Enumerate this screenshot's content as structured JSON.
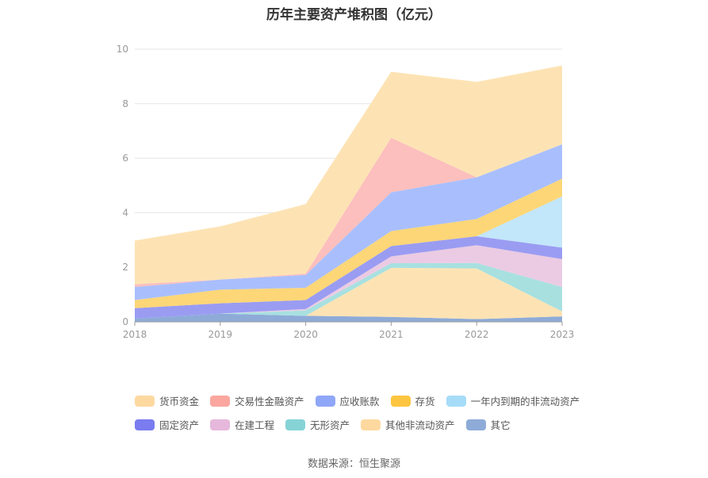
{
  "chart_data": {
    "type": "area",
    "title": "历年主要资产堆积图（亿元）",
    "categories": [
      "2018",
      "2019",
      "2020",
      "2021",
      "2022",
      "2023"
    ],
    "ylim": [
      0,
      10
    ],
    "yticks": [
      0,
      2,
      4,
      6,
      8,
      10
    ],
    "grid": true,
    "legend_position": "bottom",
    "series": [
      {
        "name": "其它",
        "color": "#8eabd8",
        "values": [
          0.12,
          0.3,
          0.22,
          0.18,
          0.1,
          0.2
        ]
      },
      {
        "name": "其他非流动资产",
        "color": "#fde3b4",
        "values": [
          0.0,
          0.0,
          0.0,
          1.8,
          1.86,
          0.18
        ]
      },
      {
        "name": "无形资产",
        "color": "#a8e0e0",
        "values": [
          0.0,
          0.0,
          0.2,
          0.17,
          0.2,
          0.9
        ]
      },
      {
        "name": "在建工程",
        "color": "#ebcbe3",
        "values": [
          0.0,
          0.0,
          0.05,
          0.25,
          0.65,
          1.02
        ]
      },
      {
        "name": "固定资产",
        "color": "#9a9cf2",
        "values": [
          0.38,
          0.38,
          0.33,
          0.38,
          0.33,
          0.42
        ]
      },
      {
        "name": "一年内到期的非流动资产",
        "color": "#c2e6fa",
        "values": [
          0.0,
          0.0,
          0.0,
          0.0,
          0.0,
          1.88
        ]
      },
      {
        "name": "存货",
        "color": "#fdd677",
        "values": [
          0.3,
          0.5,
          0.45,
          0.55,
          0.63,
          0.65
        ]
      },
      {
        "name": "应收账款",
        "color": "#a9bffd",
        "values": [
          0.48,
          0.37,
          0.47,
          1.42,
          1.53,
          1.26
        ]
      },
      {
        "name": "交易性金融资产",
        "color": "#fcbfbd",
        "values": [
          0.1,
          0.0,
          0.05,
          2.0,
          0.0,
          0.0
        ]
      },
      {
        "name": "货币资金",
        "color": "#fde3b4",
        "values": [
          1.6,
          1.95,
          2.55,
          2.42,
          3.5,
          2.89
        ]
      }
    ]
  },
  "legend": {
    "rows": [
      [
        {
          "label": "货币资金",
          "color": "#fdd9a0"
        },
        {
          "label": "交易性金融资产",
          "color": "#fba79f"
        },
        {
          "label": "应收账款",
          "color": "#8fa7f8"
        },
        {
          "label": "存货",
          "color": "#fdc540"
        },
        {
          "label": "一年内到期的非流动资产",
          "color": "#a6dcf8"
        }
      ],
      [
        {
          "label": "固定资产",
          "color": "#7b7cef"
        },
        {
          "label": "在建工程",
          "color": "#e6b8dc"
        },
        {
          "label": "无形资产",
          "color": "#86d3d6"
        },
        {
          "label": "其他非流动资产",
          "color": "#fdd9a0"
        },
        {
          "label": "其它",
          "color": "#8eabd8"
        }
      ]
    ]
  },
  "source": "数据来源：恒生聚源"
}
